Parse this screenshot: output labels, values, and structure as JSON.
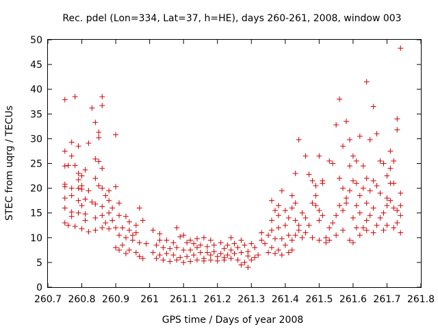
{
  "chart_data": {
    "type": "scatter",
    "title": "Rec. pdel (Lon=334, Lat=37, h=HE), days 260-261, 2008, window 003",
    "xlabel": "GPS time / Days of year 2008",
    "ylabel": "STEC from uqrg / TECUs",
    "xlim": [
      260.7,
      261.8
    ],
    "ylim": [
      0,
      50
    ],
    "x_ticks": [
      "260.7",
      "260.8",
      "260.9",
      "261",
      "261.1",
      "261.2",
      "261.3",
      "261.4",
      "261.5",
      "261.6",
      "261.7",
      "261.8"
    ],
    "y_ticks": [
      "0",
      "5",
      "10",
      "15",
      "20",
      "25",
      "30",
      "35",
      "40",
      "45",
      "50"
    ],
    "grid": false,
    "legend": "none",
    "marker": "+",
    "color": "#cc0000",
    "series": [
      {
        "points": [
          [
            260.75,
            37.9
          ],
          [
            260.78,
            38.5
          ],
          [
            260.83,
            36.2
          ],
          [
            260.86,
            38.5
          ],
          [
            260.86,
            36.7
          ],
          [
            260.84,
            33.3
          ],
          [
            260.82,
            29.1
          ],
          [
            260.77,
            29.3
          ],
          [
            260.79,
            28.5
          ],
          [
            260.9,
            30.8
          ],
          [
            260.75,
            27.5
          ],
          [
            260.77,
            26.5
          ],
          [
            260.85,
            31.3
          ],
          [
            260.85,
            30.2
          ],
          [
            260.84,
            25.9
          ],
          [
            260.85,
            25.4
          ],
          [
            260.86,
            24.0
          ],
          [
            260.75,
            24.5
          ],
          [
            260.76,
            24.6
          ],
          [
            260.78,
            24.6
          ],
          [
            260.79,
            23.0
          ],
          [
            260.8,
            22.5
          ],
          [
            260.81,
            23.7
          ],
          [
            260.84,
            22.0
          ],
          [
            260.79,
            21.7
          ],
          [
            260.75,
            20.8
          ],
          [
            260.75,
            20.3
          ],
          [
            260.77,
            20.0
          ],
          [
            260.79,
            20.0
          ],
          [
            260.8,
            19.8
          ],
          [
            260.8,
            20.5
          ],
          [
            260.82,
            19.5
          ],
          [
            260.85,
            20.5
          ],
          [
            260.86,
            20.0
          ],
          [
            260.88,
            19.5
          ],
          [
            260.9,
            20.3
          ],
          [
            260.87,
            18.5
          ],
          [
            260.75,
            18.0
          ],
          [
            260.77,
            18.5
          ],
          [
            260.81,
            17.8
          ],
          [
            260.79,
            17.5
          ],
          [
            260.83,
            17.2
          ],
          [
            260.88,
            17.5
          ],
          [
            260.8,
            16.5
          ],
          [
            260.84,
            16.8
          ],
          [
            260.86,
            16.3
          ],
          [
            260.89,
            16.0
          ],
          [
            260.75,
            16.0
          ],
          [
            260.77,
            15.2
          ],
          [
            260.79,
            15.0
          ],
          [
            260.81,
            14.8
          ],
          [
            260.86,
            14.5
          ],
          [
            260.88,
            15.0
          ],
          [
            260.91,
            17.0
          ],
          [
            260.91,
            14.5
          ],
          [
            260.93,
            14.3
          ],
          [
            260.97,
            16.0
          ],
          [
            260.75,
            13.0
          ],
          [
            260.76,
            12.5
          ],
          [
            260.78,
            12.3
          ],
          [
            260.8,
            11.8
          ],
          [
            260.82,
            11.2
          ],
          [
            260.84,
            11.5
          ],
          [
            260.86,
            12.0
          ],
          [
            260.88,
            11.8
          ],
          [
            260.9,
            12.0
          ],
          [
            260.92,
            12.0
          ],
          [
            260.94,
            11.5
          ],
          [
            260.96,
            11.0
          ],
          [
            260.98,
            13.5
          ],
          [
            260.81,
            13.5
          ],
          [
            260.84,
            14.0
          ],
          [
            260.87,
            13.0
          ],
          [
            260.89,
            13.5
          ],
          [
            260.77,
            14.3
          ],
          [
            260.94,
            13.2
          ],
          [
            260.96,
            12.5
          ],
          [
            260.91,
            10.5
          ],
          [
            260.93,
            10.0
          ],
          [
            260.95,
            9.5
          ],
          [
            260.97,
            9.0
          ],
          [
            260.99,
            8.8
          ],
          [
            260.92,
            8.5
          ],
          [
            260.9,
            8.0
          ],
          [
            260.94,
            7.5
          ],
          [
            260.96,
            7.0
          ],
          [
            260.97,
            6.2
          ],
          [
            260.98,
            5.8
          ],
          [
            260.93,
            6.8
          ],
          [
            260.91,
            7.5
          ],
          [
            260.95,
            10.5
          ],
          [
            261.01,
            11.5
          ],
          [
            261.03,
            10.8
          ],
          [
            261.05,
            9.5
          ],
          [
            261.07,
            9.0
          ],
          [
            261.09,
            10.2
          ],
          [
            261.1,
            10.5
          ],
          [
            261.08,
            12.0
          ],
          [
            261.02,
            8.5
          ],
          [
            261.04,
            8.0
          ],
          [
            261.06,
            7.8
          ],
          [
            261.08,
            8.0
          ],
          [
            261.1,
            7.5
          ],
          [
            261.12,
            7.5
          ],
          [
            261.14,
            8.0
          ],
          [
            261.01,
            7.0
          ],
          [
            261.03,
            6.5
          ],
          [
            261.05,
            6.8
          ],
          [
            261.07,
            6.5
          ],
          [
            261.09,
            6.0
          ],
          [
            261.11,
            6.2
          ],
          [
            261.13,
            6.5
          ],
          [
            261.15,
            7.0
          ],
          [
            261.02,
            5.8
          ],
          [
            261.04,
            5.5
          ],
          [
            261.06,
            5.2
          ],
          [
            261.08,
            5.5
          ],
          [
            261.1,
            5.0
          ],
          [
            261.12,
            5.2
          ],
          [
            261.14,
            5.5
          ],
          [
            261.16,
            5.8
          ],
          [
            261.03,
            9.5
          ],
          [
            261.12,
            9.5
          ],
          [
            261.14,
            9.8
          ],
          [
            261.16,
            10.0
          ],
          [
            261.18,
            9.5
          ],
          [
            261.13,
            8.8
          ],
          [
            261.15,
            8.5
          ],
          [
            261.17,
            8.2
          ],
          [
            261.11,
            9.0
          ],
          [
            261.19,
            8.5
          ],
          [
            261.17,
            7.0
          ],
          [
            261.19,
            7.2
          ],
          [
            261.21,
            6.8
          ],
          [
            261.18,
            6.5
          ],
          [
            261.2,
            6.2
          ],
          [
            261.22,
            6.0
          ],
          [
            261.16,
            5.3
          ],
          [
            261.18,
            5.5
          ],
          [
            261.2,
            5.3
          ],
          [
            261.22,
            5.5
          ],
          [
            261.24,
            5.8
          ],
          [
            261.21,
            9.0
          ],
          [
            261.23,
            8.5
          ],
          [
            261.25,
            8.8
          ],
          [
            261.27,
            9.5
          ],
          [
            261.24,
            10.0
          ],
          [
            261.22,
            7.8
          ],
          [
            261.24,
            7.5
          ],
          [
            261.26,
            8.0
          ],
          [
            261.28,
            8.5
          ],
          [
            261.3,
            8.8
          ],
          [
            261.23,
            6.5
          ],
          [
            261.25,
            6.8
          ],
          [
            261.27,
            7.0
          ],
          [
            261.29,
            7.2
          ],
          [
            261.26,
            5.5
          ],
          [
            261.28,
            5.0
          ],
          [
            261.3,
            5.5
          ],
          [
            261.27,
            4.5
          ],
          [
            261.29,
            4.0
          ],
          [
            261.31,
            6.0
          ],
          [
            261.32,
            6.5
          ],
          [
            261.31,
            8.0
          ],
          [
            261.29,
            6.3
          ],
          [
            261.33,
            11.0
          ],
          [
            261.35,
            10.5
          ],
          [
            261.37,
            9.8
          ],
          [
            261.33,
            9.5
          ],
          [
            261.34,
            8.8
          ],
          [
            261.36,
            8.0
          ],
          [
            261.38,
            7.5
          ],
          [
            261.35,
            7.0
          ],
          [
            261.37,
            6.8
          ],
          [
            261.39,
            6.5
          ],
          [
            261.41,
            7.0
          ],
          [
            261.42,
            7.5
          ],
          [
            261.4,
            8.5
          ],
          [
            261.42,
            9.5
          ],
          [
            261.39,
            9.8
          ],
          [
            261.41,
            10.5
          ],
          [
            261.36,
            11.5
          ],
          [
            261.38,
            12.0
          ],
          [
            261.4,
            12.5
          ],
          [
            261.36,
            13.5
          ],
          [
            261.38,
            14.5
          ],
          [
            261.37,
            15.5
          ],
          [
            261.4,
            15.5
          ],
          [
            261.38,
            16.5
          ],
          [
            261.36,
            17.5
          ],
          [
            261.39,
            19.5
          ],
          [
            261.42,
            18.5
          ],
          [
            261.43,
            17.0
          ],
          [
            261.42,
            16.0
          ],
          [
            261.41,
            14.0
          ],
          [
            261.43,
            13.5
          ],
          [
            261.44,
            12.5
          ],
          [
            261.44,
            11.5
          ],
          [
            261.43,
            10.5
          ],
          [
            261.45,
            10.0
          ],
          [
            261.46,
            11.0
          ],
          [
            261.47,
            12.5
          ],
          [
            261.46,
            14.0
          ],
          [
            261.45,
            15.0
          ],
          [
            261.43,
            23.0
          ],
          [
            261.44,
            29.8
          ],
          [
            261.46,
            26.5
          ],
          [
            261.47,
            22.8
          ],
          [
            261.48,
            21.5
          ],
          [
            261.49,
            20.5
          ],
          [
            261.5,
            26.5
          ],
          [
            261.49,
            18.5
          ],
          [
            261.48,
            17.0
          ],
          [
            261.49,
            16.5
          ],
          [
            261.5,
            15.5
          ],
          [
            261.51,
            14.5
          ],
          [
            261.5,
            13.5
          ],
          [
            261.48,
            10.0
          ],
          [
            261.5,
            9.5
          ],
          [
            261.52,
            9.0
          ],
          [
            261.51,
            21.5
          ],
          [
            261.51,
            21.0
          ],
          [
            261.53,
            25.5
          ],
          [
            261.54,
            25.0
          ],
          [
            261.55,
            32.8
          ],
          [
            261.56,
            38.0
          ],
          [
            261.57,
            28.5
          ],
          [
            261.58,
            33.5
          ],
          [
            261.59,
            29.8
          ],
          [
            261.56,
            22.0
          ],
          [
            261.57,
            20.0
          ],
          [
            261.58,
            18.0
          ],
          [
            261.59,
            24.5
          ],
          [
            261.6,
            26.5
          ],
          [
            261.61,
            25.5
          ],
          [
            261.62,
            30.5
          ],
          [
            261.6,
            21.5
          ],
          [
            261.61,
            21.0
          ],
          [
            261.59,
            19.5
          ],
          [
            261.58,
            17.0
          ],
          [
            261.57,
            15.5
          ],
          [
            261.56,
            16.5
          ],
          [
            261.55,
            14.5
          ],
          [
            261.54,
            13.0
          ],
          [
            261.53,
            12.0
          ],
          [
            261.52,
            10.0
          ],
          [
            261.53,
            9.5
          ],
          [
            261.55,
            10.5
          ],
          [
            261.57,
            11.5
          ],
          [
            261.59,
            9.5
          ],
          [
            261.6,
            9.0
          ],
          [
            261.62,
            10.5
          ],
          [
            261.61,
            12.0
          ],
          [
            261.6,
            14.0
          ],
          [
            261.62,
            15.0
          ],
          [
            261.61,
            16.5
          ],
          [
            261.62,
            18.5
          ],
          [
            261.63,
            20.0
          ],
          [
            261.64,
            22.0
          ],
          [
            261.63,
            24.5
          ],
          [
            261.64,
            41.5
          ],
          [
            261.65,
            29.8
          ],
          [
            261.66,
            36.5
          ],
          [
            261.67,
            31.0
          ],
          [
            261.68,
            25.5
          ],
          [
            261.69,
            25.0
          ],
          [
            261.64,
            17.0
          ],
          [
            261.65,
            19.5
          ],
          [
            261.66,
            21.5
          ],
          [
            261.67,
            20.5
          ],
          [
            261.68,
            19.0
          ],
          [
            261.66,
            16.0
          ],
          [
            261.65,
            14.5
          ],
          [
            261.64,
            13.5
          ],
          [
            261.63,
            12.0
          ],
          [
            261.64,
            11.5
          ],
          [
            261.66,
            11.0
          ],
          [
            261.67,
            12.5
          ],
          [
            261.68,
            14.0
          ],
          [
            261.69,
            15.0
          ],
          [
            261.7,
            16.5
          ],
          [
            261.7,
            18.0
          ],
          [
            261.71,
            21.0
          ],
          [
            261.7,
            22.5
          ],
          [
            261.71,
            24.0
          ],
          [
            261.71,
            27.5
          ],
          [
            261.72,
            25.5
          ],
          [
            261.73,
            31.8
          ],
          [
            261.73,
            34.0
          ],
          [
            261.72,
            21.0
          ],
          [
            261.73,
            15.5
          ],
          [
            261.74,
            14.5
          ],
          [
            261.74,
            16.5
          ],
          [
            261.74,
            19.0
          ],
          [
            261.74,
            48.3
          ],
          [
            261.73,
            13.0
          ],
          [
            261.72,
            12.0
          ],
          [
            261.7,
            12.5
          ],
          [
            261.69,
            11.5
          ],
          [
            261.74,
            11.0
          ],
          [
            261.71,
            17.5
          ],
          [
            261.72,
            16.0
          ]
        ]
      }
    ]
  }
}
